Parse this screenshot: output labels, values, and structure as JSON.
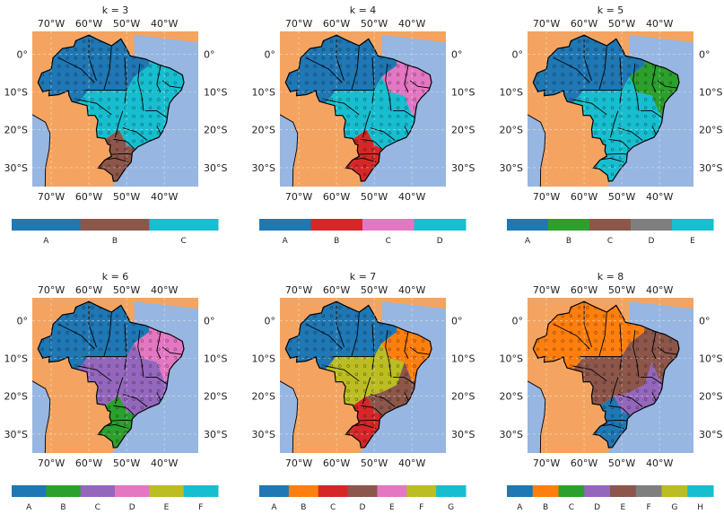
{
  "chart_data": {
    "type": "map",
    "description_scheme": "six cluster maps of Brazil, each with a categorical colorbar legend",
    "lon_ticks": [
      "70°W",
      "60°W",
      "50°W",
      "40°W"
    ],
    "lat_ticks": [
      "0°",
      "10°S",
      "20°S",
      "30°S"
    ],
    "lon_range": [
      -75,
      -31
    ],
    "lat_range": [
      6,
      -35
    ],
    "colors": {
      "ocean": "#97b6e1",
      "land": "#f4a460",
      "grid": "#ffffff"
    },
    "panels": [
      {
        "title": "k = 3",
        "categories": [
          "A",
          "B",
          "C"
        ],
        "colors": [
          "#1f77b4",
          "#8c564b",
          "#17becf"
        ],
        "regions": {
          "north": 0,
          "northeast": 2,
          "central": 2,
          "southeast": 2,
          "south": 1
        }
      },
      {
        "title": "k = 4",
        "categories": [
          "A",
          "B",
          "C",
          "D"
        ],
        "colors": [
          "#1f77b4",
          "#d62728",
          "#e377c2",
          "#17becf"
        ],
        "regions": {
          "north": 0,
          "northeast": 2,
          "central": 3,
          "southeast": 3,
          "south": 1
        }
      },
      {
        "title": "k = 5",
        "categories": [
          "A",
          "B",
          "C",
          "D",
          "E"
        ],
        "colors": [
          "#1f77b4",
          "#2ca02c",
          "#8c564b",
          "#7f7f7f",
          "#17becf"
        ],
        "regions": {
          "north": 0,
          "northeast": 1,
          "central": 4,
          "southeast": 4,
          "south": 4
        }
      },
      {
        "title": "k = 6",
        "categories": [
          "A",
          "B",
          "C",
          "D",
          "E",
          "F"
        ],
        "colors": [
          "#1f77b4",
          "#2ca02c",
          "#9467bd",
          "#e377c2",
          "#bcbd22",
          "#17becf"
        ],
        "regions": {
          "north": 0,
          "northeast": 3,
          "central": 2,
          "southeast": 2,
          "south": 1
        }
      },
      {
        "title": "k = 7",
        "categories": [
          "A",
          "B",
          "C",
          "D",
          "E",
          "F",
          "G"
        ],
        "colors": [
          "#1f77b4",
          "#ff7f0e",
          "#d62728",
          "#8c564b",
          "#e377c2",
          "#bcbd22",
          "#17becf"
        ],
        "regions": {
          "north": 0,
          "northeast": 1,
          "central": 5,
          "southeast": 3,
          "south": 2
        }
      },
      {
        "title": "k = 8",
        "categories": [
          "A",
          "B",
          "C",
          "D",
          "E",
          "F",
          "G",
          "H"
        ],
        "colors": [
          "#1f77b4",
          "#ff7f0e",
          "#2ca02c",
          "#9467bd",
          "#8c564b",
          "#7f7f7f",
          "#bcbd22",
          "#17becf"
        ],
        "regions": {
          "north": 1,
          "northeast": 4,
          "central": 4,
          "southeast": 3,
          "south": 0
        }
      }
    ]
  }
}
